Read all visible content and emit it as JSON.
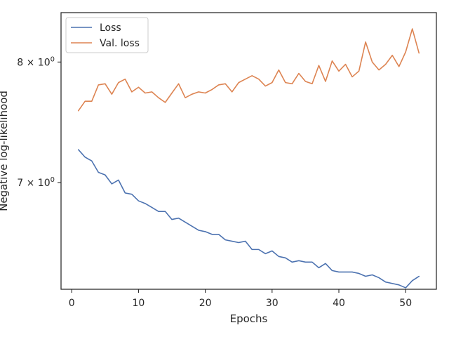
{
  "chart_data": {
    "type": "line",
    "xlabel": "Epochs",
    "ylabel": "Negative log-likelihood",
    "xlim": [
      -1.6,
      54.6
    ],
    "ylim": [
      6.22,
      8.45
    ],
    "yscale": "log",
    "xticks": [
      0,
      10,
      20,
      30,
      40,
      50
    ],
    "xtick_labels": [
      "0",
      "10",
      "20",
      "30",
      "40",
      "50"
    ],
    "yticks": [
      7,
      8
    ],
    "ytick_labels_base": [
      "7",
      "8"
    ],
    "ytick_exp": "0",
    "grid": false,
    "legend_position": "top-left",
    "x": [
      1,
      2,
      3,
      4,
      5,
      6,
      7,
      8,
      9,
      10,
      11,
      12,
      13,
      14,
      15,
      16,
      17,
      18,
      19,
      20,
      21,
      22,
      23,
      24,
      25,
      26,
      27,
      28,
      29,
      30,
      31,
      32,
      33,
      34,
      35,
      36,
      37,
      38,
      39,
      40,
      41,
      42,
      43,
      44,
      45,
      46,
      47,
      48,
      49,
      50,
      51,
      52
    ],
    "series": [
      {
        "name": "Loss",
        "color": "#4c72b0",
        "values": [
          7.26,
          7.2,
          7.17,
          7.08,
          7.06,
          6.99,
          7.02,
          6.92,
          6.91,
          6.86,
          6.84,
          6.81,
          6.78,
          6.78,
          6.72,
          6.73,
          6.7,
          6.67,
          6.64,
          6.63,
          6.61,
          6.61,
          6.57,
          6.56,
          6.55,
          6.56,
          6.5,
          6.5,
          6.47,
          6.49,
          6.45,
          6.44,
          6.41,
          6.42,
          6.41,
          6.41,
          6.37,
          6.4,
          6.35,
          6.34,
          6.34,
          6.34,
          6.33,
          6.31,
          6.32,
          6.3,
          6.27,
          6.26,
          6.25,
          6.23,
          6.28,
          6.31
        ]
      },
      {
        "name": "Val. loss",
        "color": "#dd8452",
        "values": [
          7.58,
          7.66,
          7.66,
          7.8,
          7.81,
          7.72,
          7.82,
          7.85,
          7.74,
          7.78,
          7.73,
          7.74,
          7.69,
          7.65,
          7.73,
          7.81,
          7.69,
          7.72,
          7.74,
          7.73,
          7.76,
          7.8,
          7.81,
          7.74,
          7.82,
          7.85,
          7.88,
          7.85,
          7.79,
          7.82,
          7.93,
          7.82,
          7.81,
          7.9,
          7.83,
          7.81,
          7.97,
          7.83,
          8.01,
          7.92,
          7.98,
          7.87,
          7.92,
          8.18,
          8.0,
          7.93,
          7.98,
          8.06,
          7.96,
          8.09,
          8.3,
          8.08
        ]
      }
    ]
  }
}
